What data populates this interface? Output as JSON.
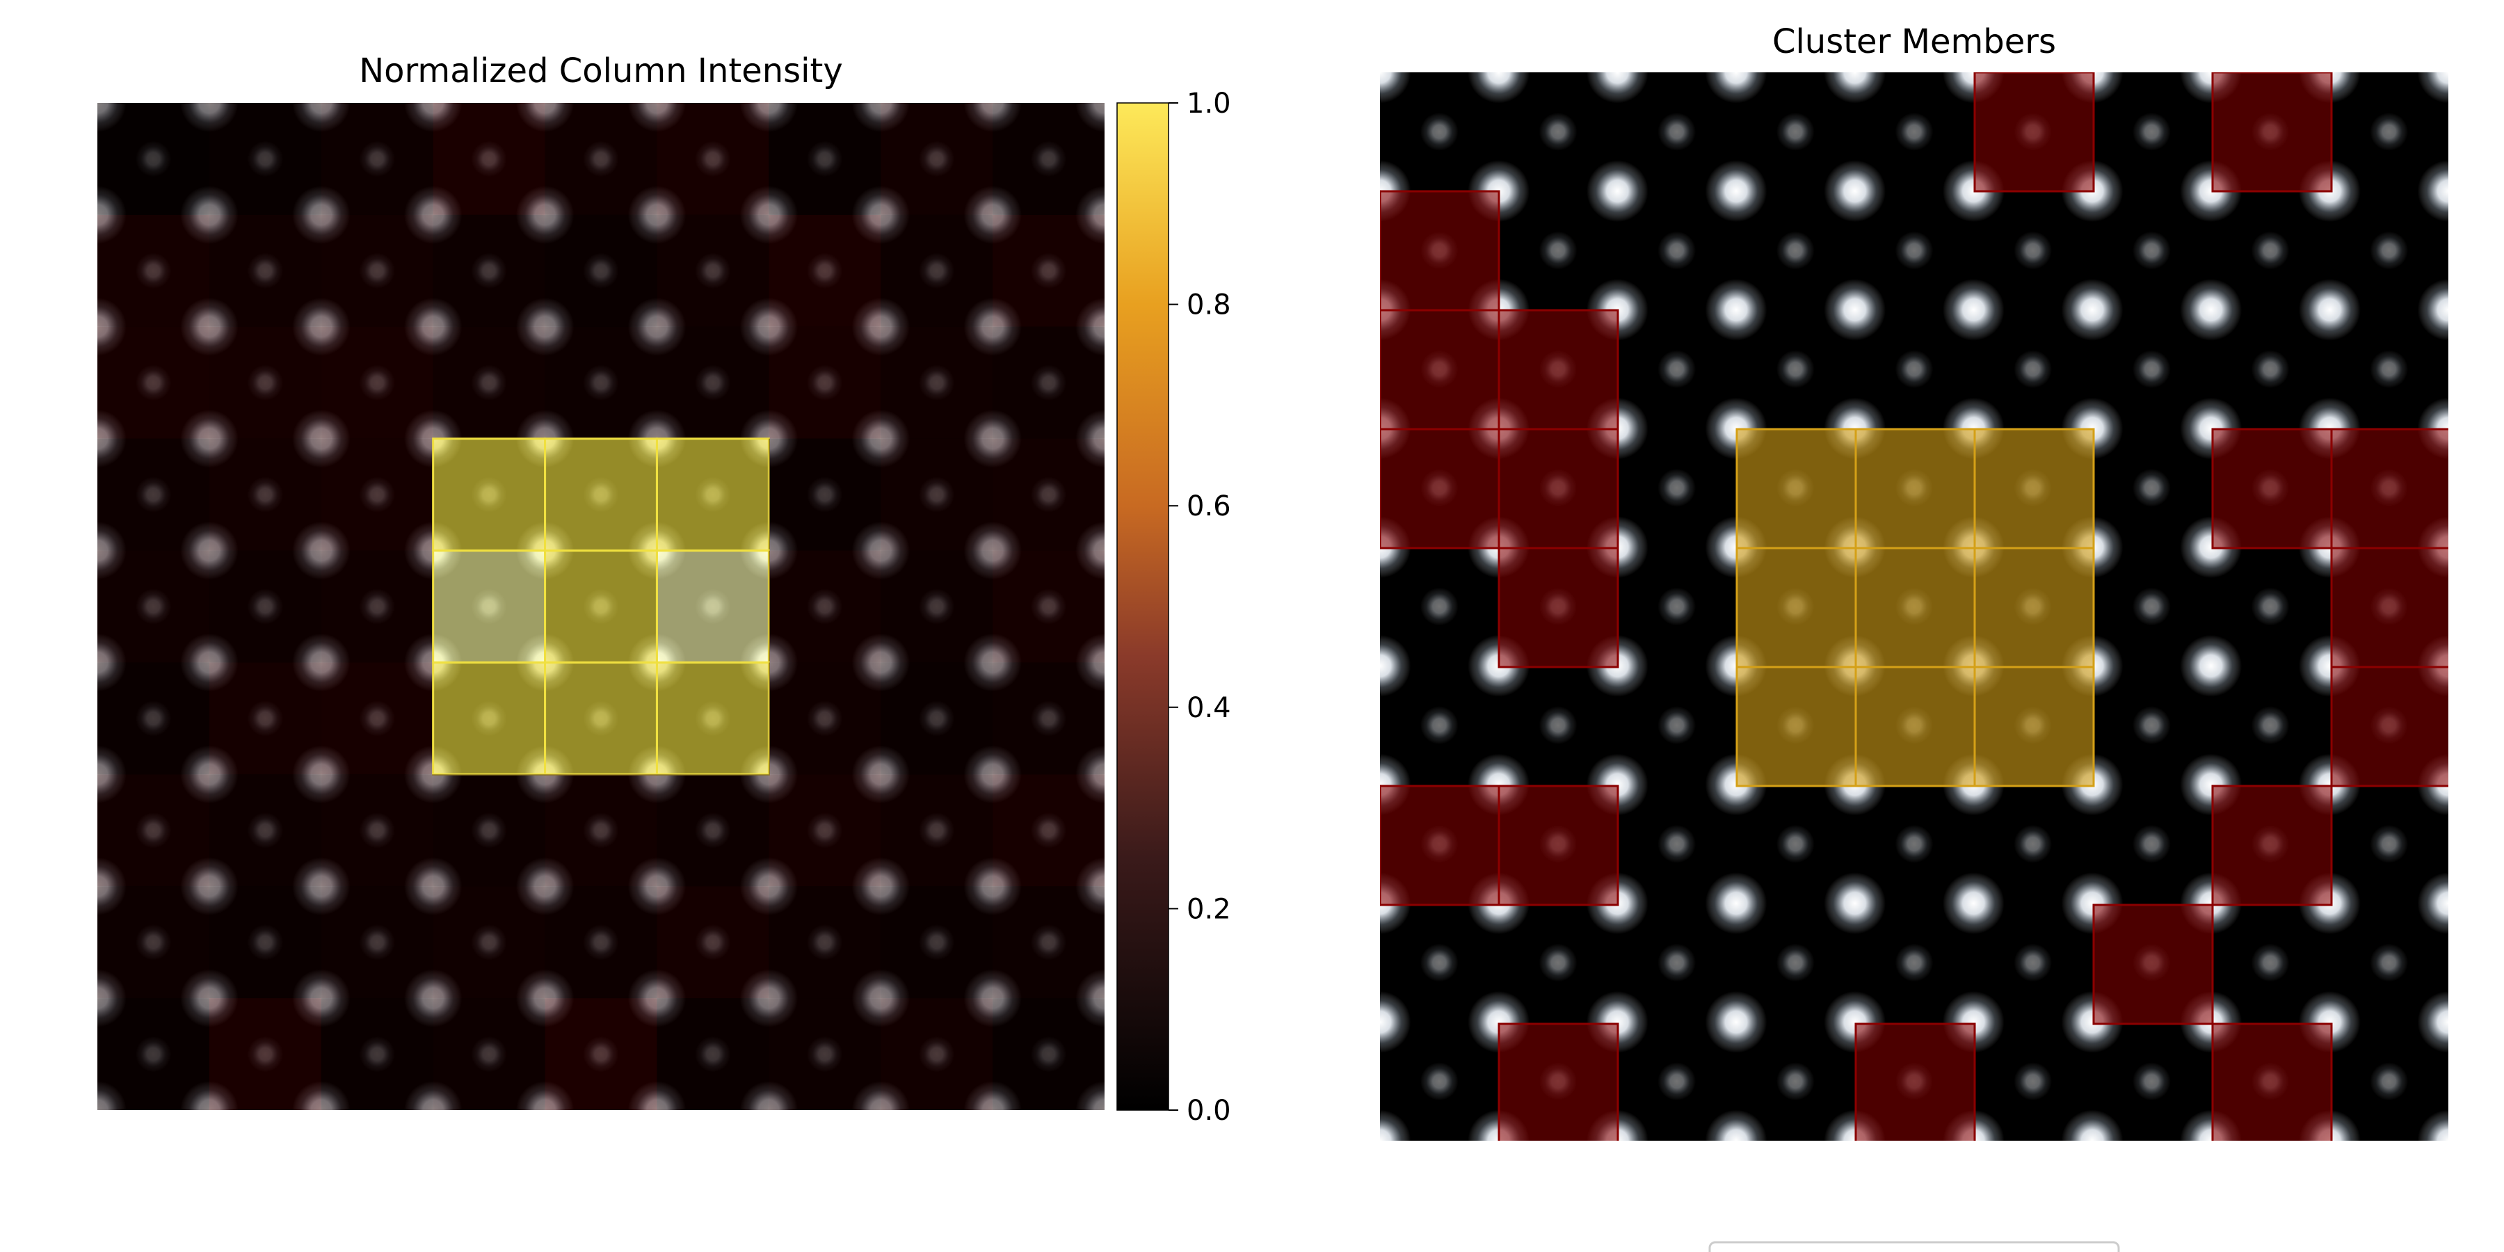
{
  "chart_data": [
    {
      "type": "heatmap",
      "title": "Normalized Column Intensity",
      "grid_size": [
        9,
        9
      ],
      "values": [
        [
          0.02,
          0.03,
          0.05,
          0.1,
          0.06,
          0.09,
          0.03,
          0.07,
          0.04
        ],
        [
          0.08,
          0.06,
          0.07,
          0.05,
          0.04,
          0.06,
          0.1,
          0.05,
          0.09
        ],
        [
          0.09,
          0.08,
          0.09,
          0.06,
          0.05,
          0.05,
          0.09,
          0.06,
          0.05
        ],
        [
          0.05,
          0.07,
          0.08,
          0.92,
          0.95,
          0.93,
          0.04,
          0.06,
          0.07
        ],
        [
          0.06,
          0.05,
          0.06,
          0.82,
          0.97,
          0.85,
          0.07,
          0.05,
          0.08
        ],
        [
          0.04,
          0.08,
          0.09,
          0.93,
          0.96,
          0.94,
          0.06,
          0.04,
          0.05
        ],
        [
          0.07,
          0.05,
          0.06,
          0.05,
          0.07,
          0.05,
          0.08,
          0.06,
          0.09
        ],
        [
          0.05,
          0.04,
          0.05,
          0.06,
          0.05,
          0.08,
          0.05,
          0.04,
          0.05
        ],
        [
          0.03,
          0.1,
          0.04,
          0.05,
          0.11,
          0.04,
          0.05,
          0.07,
          0.03
        ]
      ],
      "colorbar": {
        "colormap": "afmhot",
        "range": [
          0.0,
          1.0
        ],
        "ticks": [
          "0.0",
          "0.2",
          "0.4",
          "0.6",
          "0.8",
          "1.0"
        ]
      },
      "highlight": {
        "rows": [
          3,
          5
        ],
        "cols": [
          3,
          5
        ],
        "color": "#f0e040"
      },
      "grid": false
    },
    {
      "type": "heatmap",
      "title": "Cluster Members",
      "grid_size": [
        9,
        9
      ],
      "cluster_color": "#d4a017",
      "member_color": "#8b0000",
      "cluster_cells": [
        [
          3,
          3
        ],
        [
          3,
          4
        ],
        [
          3,
          5
        ],
        [
          4,
          3
        ],
        [
          4,
          4
        ],
        [
          4,
          5
        ],
        [
          5,
          3
        ],
        [
          5,
          4
        ],
        [
          5,
          5
        ]
      ],
      "member_cells": [
        [
          0,
          5
        ],
        [
          0,
          7
        ],
        [
          1,
          0
        ],
        [
          2,
          0
        ],
        [
          2,
          1
        ],
        [
          3,
          0
        ],
        [
          3,
          1
        ],
        [
          3,
          7
        ],
        [
          3,
          8
        ],
        [
          4,
          1
        ],
        [
          4,
          8
        ],
        [
          5,
          8
        ],
        [
          6,
          0
        ],
        [
          6,
          1
        ],
        [
          6,
          7
        ],
        [
          7,
          6
        ],
        [
          8,
          1
        ],
        [
          8,
          4
        ],
        [
          8,
          7
        ]
      ],
      "grid": false
    }
  ],
  "legend": {
    "visible": true,
    "placement": "bottom"
  }
}
